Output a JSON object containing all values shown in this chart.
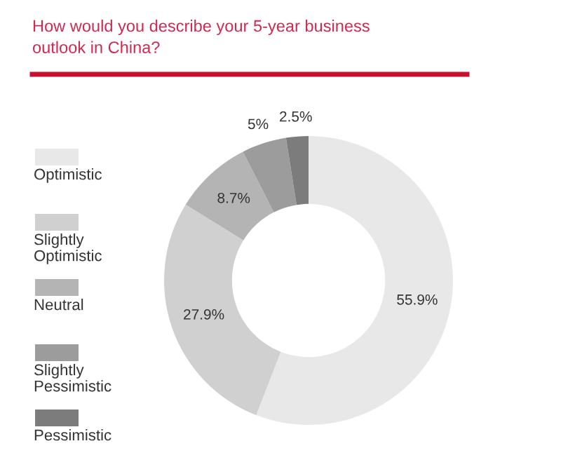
{
  "chart_data": {
    "type": "donut",
    "title": "How would you describe your 5-year business\noutlook in China?",
    "categories": [
      "Optimistic",
      "Slightly\nOptimistic",
      "Neutral",
      "Slightly\nPessimistic",
      "Pessimistic"
    ],
    "values": [
      55.9,
      27.9,
      8.7,
      5,
      2.5
    ],
    "colors": [
      "#e8e8e8",
      "#d0d0d0",
      "#b4b4b4",
      "#9c9c9c",
      "#7c7c7c"
    ],
    "value_labels": [
      "55.9%",
      "27.9%",
      "8.7%",
      "5%",
      "2.5%"
    ],
    "legend": "left"
  }
}
